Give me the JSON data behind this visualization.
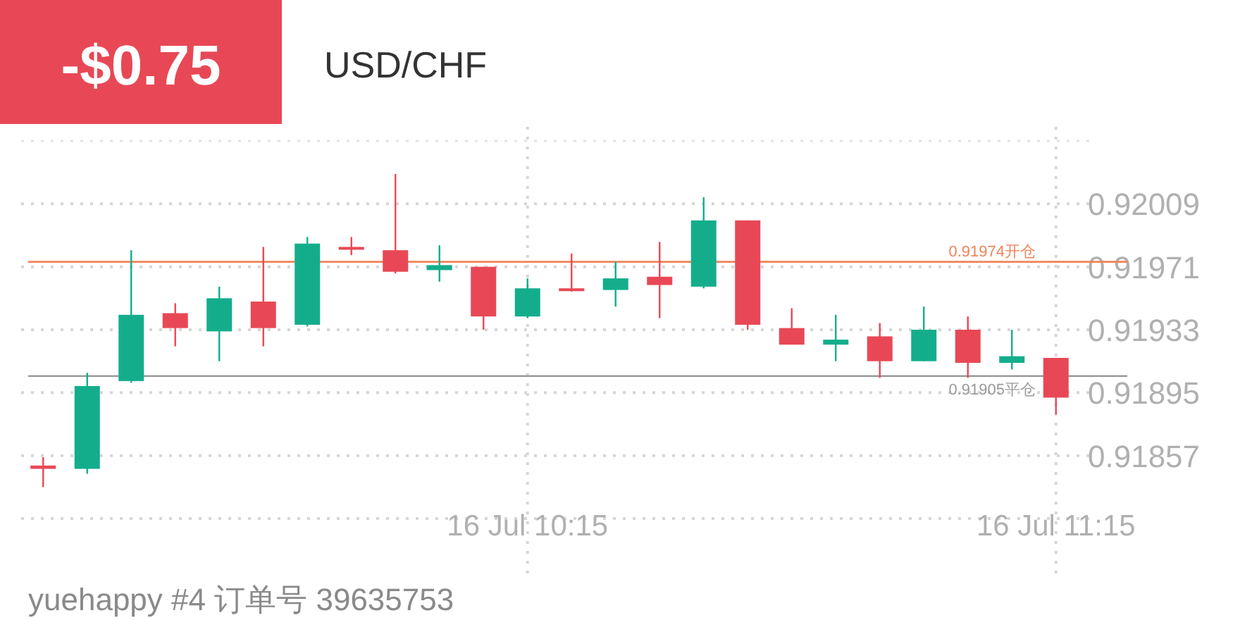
{
  "chart_data": {
    "type": "candlestick",
    "title": "USD/CHF",
    "annotations": [
      "-$0.75",
      "yuehappy #4   订单号 39635753"
    ],
    "categories": [
      null,
      null,
      null,
      null,
      null,
      null,
      null,
      null,
      null,
      null,
      null,
      "16 Jul 10:15",
      null,
      null,
      null,
      null,
      null,
      null,
      null,
      null,
      null,
      null,
      null,
      "16 Jul 11:15"
    ],
    "ohlc": [
      [
        0.91851,
        0.91856,
        0.91838,
        0.91849
      ],
      [
        0.91849,
        0.91907,
        0.91846,
        0.91899
      ],
      [
        0.91902,
        0.91981,
        0.91901,
        0.91942
      ],
      [
        0.91943,
        0.91949,
        0.91923,
        0.91934
      ],
      [
        0.91932,
        0.91959,
        0.91914,
        0.91952
      ],
      [
        0.9195,
        0.91983,
        0.91923,
        0.91934
      ],
      [
        0.91936,
        0.91989,
        0.91935,
        0.91985
      ],
      [
        0.91983,
        0.91989,
        0.91978,
        0.91982
      ],
      [
        0.91981,
        0.92027,
        0.91967,
        0.91968
      ],
      [
        0.91969,
        0.91984,
        0.91962,
        0.91972
      ],
      [
        0.91971,
        0.91971,
        0.91933,
        0.91941
      ],
      [
        0.91941,
        0.91964,
        0.9194,
        0.91958
      ],
      [
        0.91958,
        0.91979,
        0.91956,
        0.91957
      ],
      [
        0.91957,
        0.91974,
        0.91947,
        0.91964
      ],
      [
        0.91965,
        0.91986,
        0.9194,
        0.9196
      ],
      [
        0.91959,
        0.92013,
        0.91958,
        0.91999
      ],
      [
        0.91999,
        0.91999,
        0.91933,
        0.91936
      ],
      [
        0.91934,
        0.91946,
        0.91924,
        0.91924
      ],
      [
        0.91924,
        0.91942,
        0.91914,
        0.91927
      ],
      [
        0.91929,
        0.91937,
        0.91904,
        0.91914
      ],
      [
        0.91914,
        0.91947,
        0.91914,
        0.91933
      ],
      [
        0.91933,
        0.91941,
        0.91904,
        0.91913
      ],
      [
        0.91913,
        0.91933,
        0.91909,
        0.91917
      ],
      [
        0.91916,
        0.91916,
        0.91882,
        0.91892
      ]
    ],
    "colors": [
      "#e84855",
      "#14ad8c",
      "#14ad8c",
      "#e84855",
      "#14ad8c",
      "#e84855",
      "#14ad8c",
      "#e84855",
      "#e84855",
      "#14ad8c",
      "#e84855",
      "#14ad8c",
      "#e84855",
      "#14ad8c",
      "#e84855",
      "#14ad8c",
      "#e84855",
      "#e84855",
      "#14ad8c",
      "#e84855",
      "#14ad8c",
      "#e84855",
      "#14ad8c",
      "#e84855"
    ],
    "ylim": [
      0.91819,
      0.92047
    ],
    "yticks": [
      0.92009,
      0.91971,
      0.91933,
      0.91895,
      0.91857
    ],
    "grid": true,
    "ref_lines": [
      {
        "axis": "y",
        "value": 0.91974,
        "label": "0.91974开仓",
        "color": "#f0845a"
      },
      {
        "axis": "y",
        "value": 0.91905,
        "label": "0.91905平仓",
        "color": "#9a9a9a"
      }
    ]
  }
}
